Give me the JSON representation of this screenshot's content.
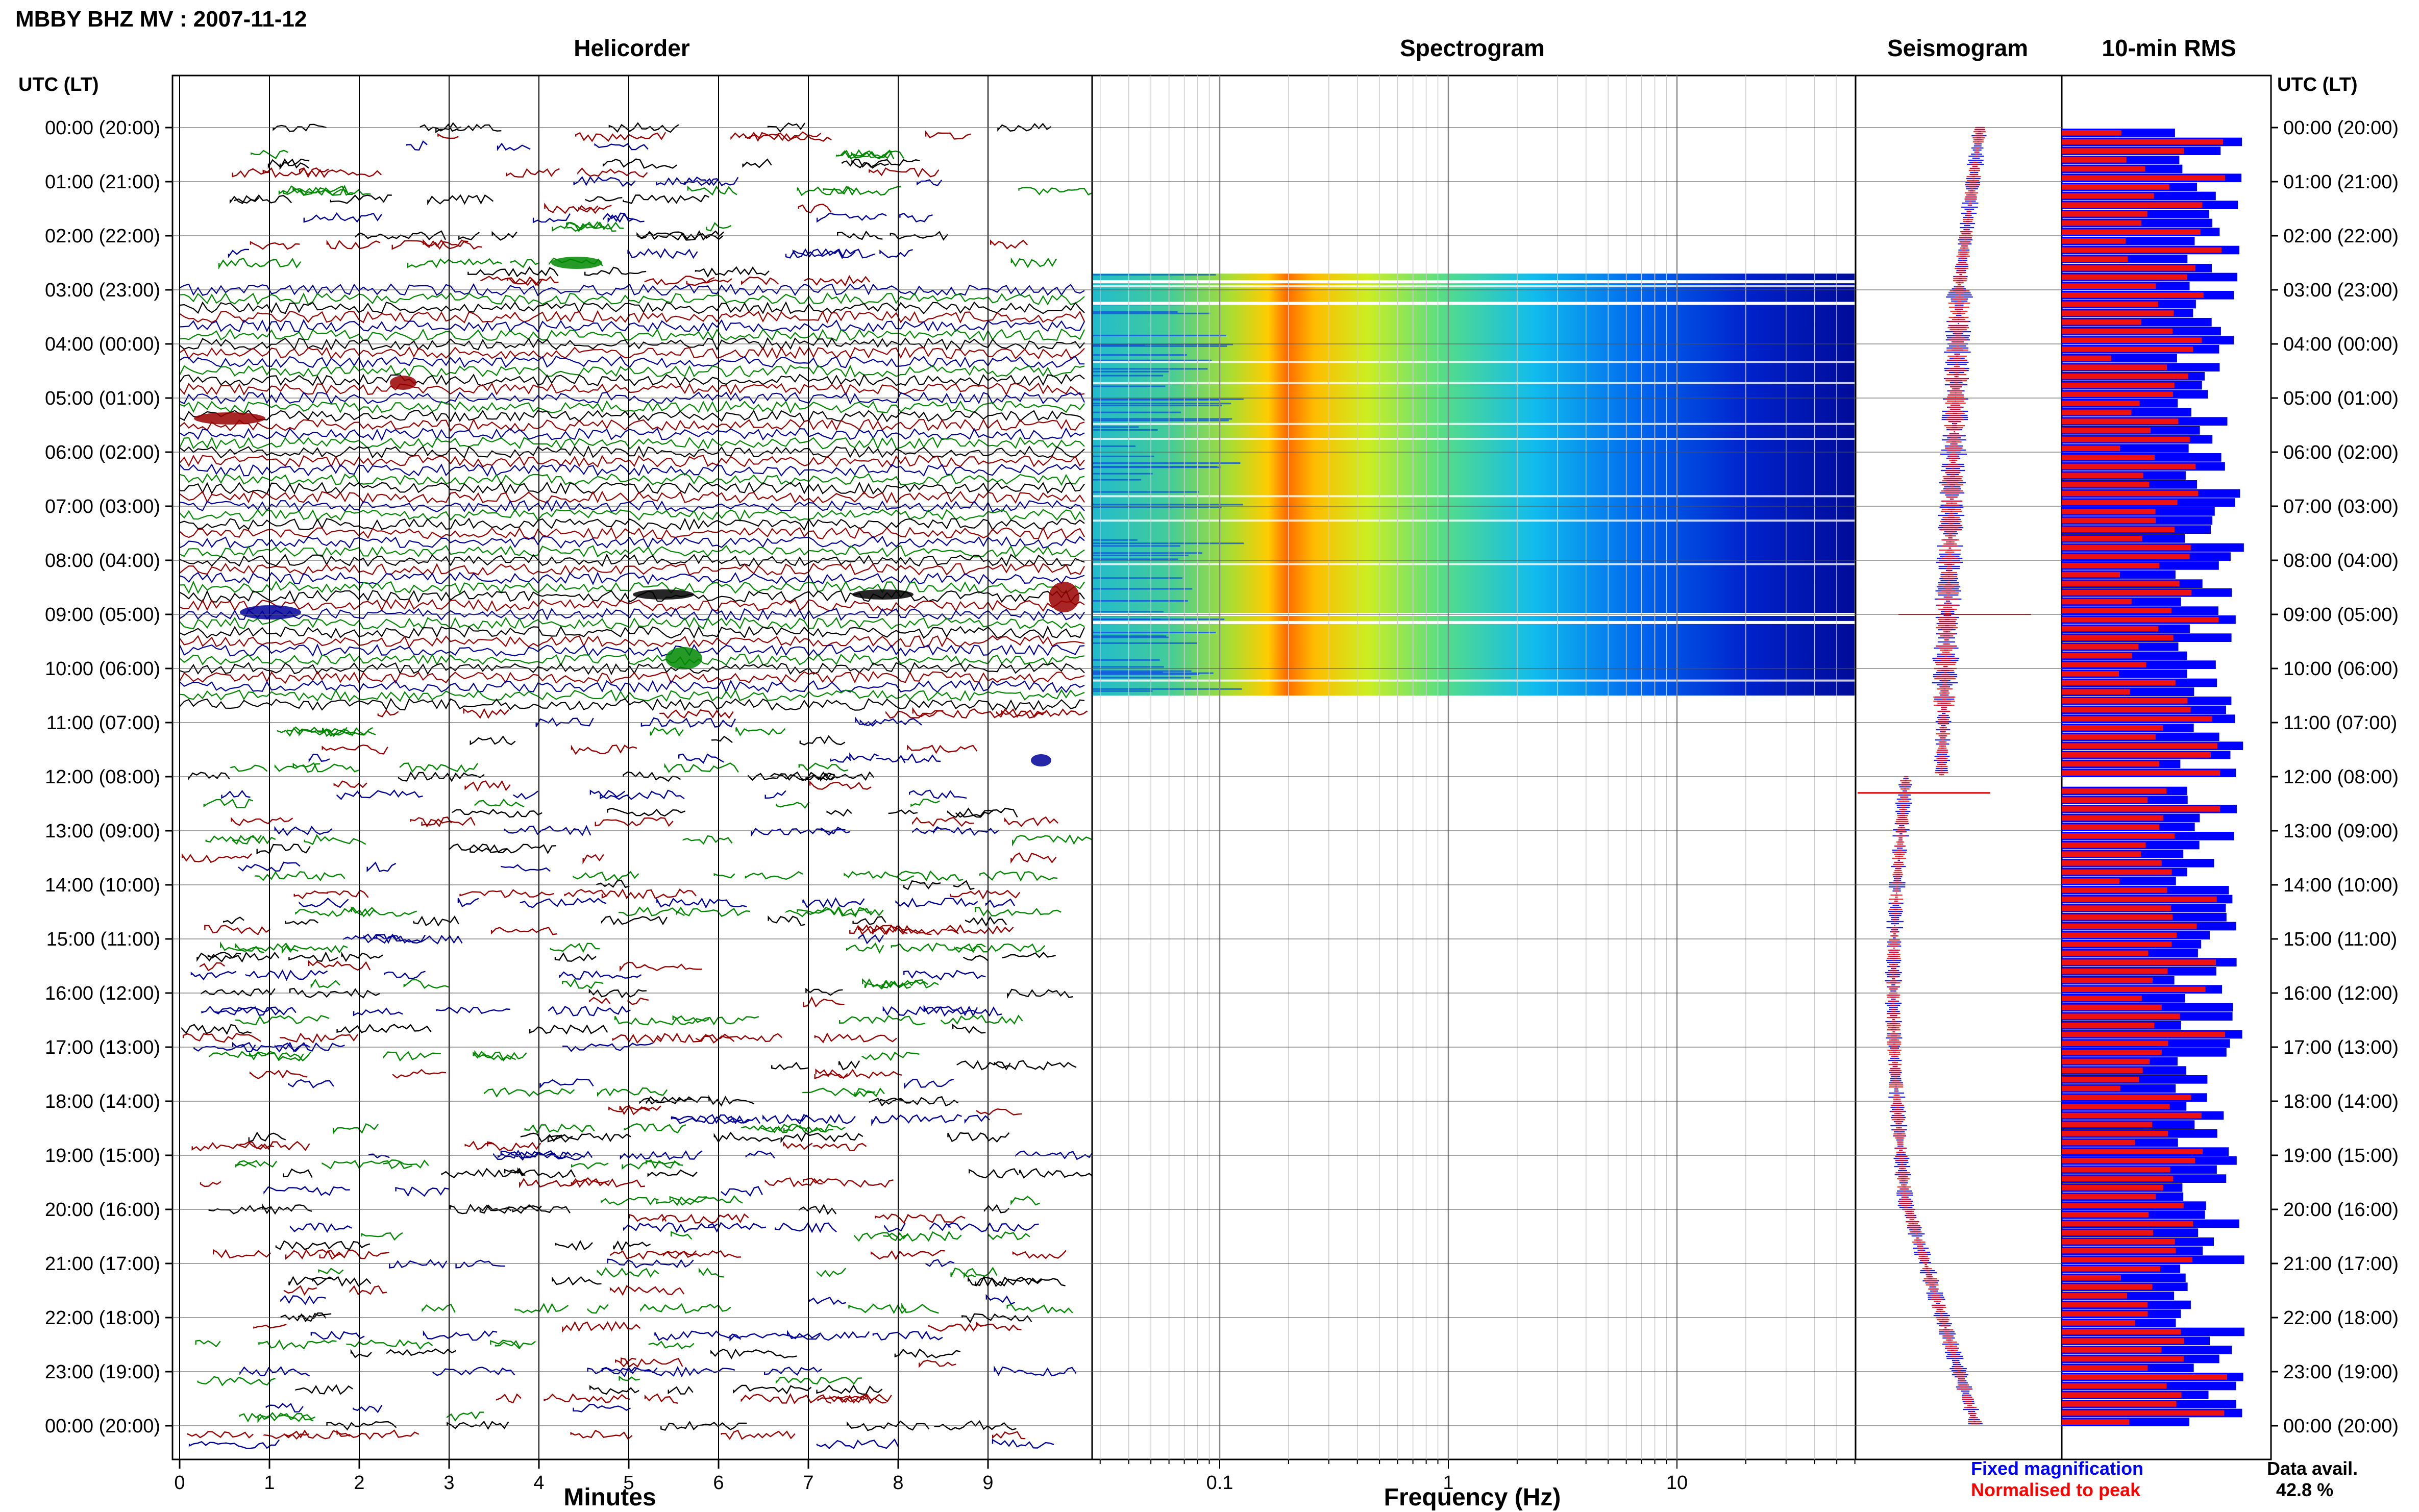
{
  "header": {
    "title": "MBBY BHZ MV : 2007-11-12"
  },
  "panels": {
    "helicorder": "Helicorder",
    "spectrogram": "Spectrogram",
    "seismogram": "Seismogram",
    "rms": "10-min RMS"
  },
  "time_axis": {
    "label": "UTC (LT)",
    "ticks": [
      "00:00 (20:00)",
      "01:00 (21:00)",
      "02:00 (22:00)",
      "03:00 (23:00)",
      "04:00 (00:00)",
      "05:00 (01:00)",
      "06:00 (02:00)",
      "07:00 (03:00)",
      "08:00 (04:00)",
      "09:00 (05:00)",
      "10:00 (06:00)",
      "11:00 (07:00)",
      "12:00 (08:00)",
      "13:00 (09:00)",
      "14:00 (10:00)",
      "15:00 (11:00)",
      "16:00 (12:00)",
      "17:00 (13:00)",
      "18:00 (14:00)",
      "19:00 (15:00)",
      "20:00 (16:00)",
      "21:00 (17:00)",
      "22:00 (18:00)",
      "23:00 (19:00)",
      "00:00 (20:00)"
    ]
  },
  "legend": {
    "fixed": "Fixed magnification",
    "normalised": "Normalised to peak",
    "fixed_color": "#0000ff",
    "normalised_color": "#ff0000"
  },
  "data_avail": {
    "label": "Data avail.",
    "value": "42.8 %"
  },
  "colors": {
    "trace_colors": [
      "#000000",
      "#990000",
      "#000099",
      "#008800"
    ],
    "rms_fixed": "#0000ff",
    "rms_normalised": "#ee1111"
  },
  "chart_data": [
    {
      "type": "line",
      "panel": "Helicorder",
      "xlabel": "Minutes",
      "ticks": [
        "0",
        "1",
        "2",
        "3",
        "4",
        "5",
        "6",
        "7",
        "8",
        "9"
      ],
      "xlim": [
        0,
        10
      ],
      "rows_per_hour": 6,
      "continuous_noise_hours": [
        3,
        10.7
      ],
      "trace_colors": [
        "#000000",
        "#990000",
        "#000099",
        "#008800"
      ]
    },
    {
      "type": "heatmap",
      "panel": "Spectrogram",
      "xlabel": "Frequency (Hz)",
      "ticks": [
        "0.1",
        "1",
        "10"
      ],
      "xscale": "log",
      "data_hours": [
        2.7,
        10.5
      ],
      "peak_frequency_hz": 0.25
    },
    {
      "type": "line",
      "panel": "Seismogram",
      "series": [
        {
          "name": "Fixed magnification",
          "color": "#0000ff"
        },
        {
          "name": "Normalised to peak",
          "color": "#ff0000"
        }
      ]
    },
    {
      "type": "bar",
      "panel": "10-min RMS",
      "gap_hours": [
        [
          11.95,
          12.15
        ]
      ],
      "series": [
        {
          "name": "Fixed magnification",
          "color": "#0000ff"
        },
        {
          "name": "Normalised to peak",
          "color": "#ee1111"
        }
      ]
    }
  ]
}
